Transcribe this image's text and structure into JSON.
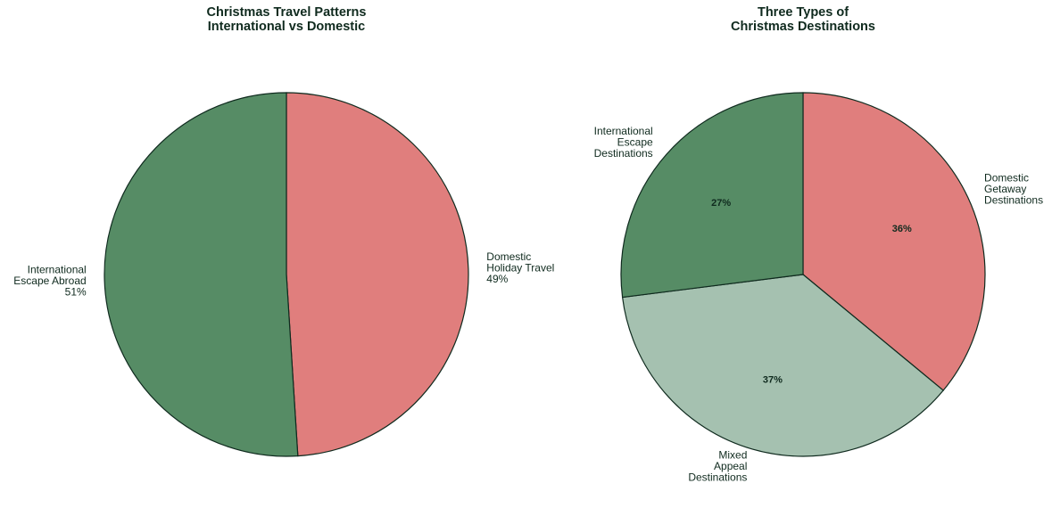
{
  "chart_data": [
    {
      "type": "pie",
      "title": [
        "Christmas Travel Patterns",
        "International vs Domestic"
      ],
      "start": "top",
      "direction": "clockwise",
      "labels_show_percent": "outside",
      "slices": [
        {
          "label": [
            "Domestic",
            "Holiday Travel"
          ],
          "value": 49,
          "pct_text": "49%",
          "color": "#e07e7d"
        },
        {
          "label": [
            "International",
            "Escape Abroad"
          ],
          "value": 51,
          "pct_text": "51%",
          "color": "#568c65"
        }
      ]
    },
    {
      "type": "pie",
      "title": [
        "Three Types of",
        "Christmas Destinations"
      ],
      "start": "top",
      "direction": "clockwise",
      "labels_show_percent": "inside",
      "slices": [
        {
          "label": [
            "Domestic",
            "Getaway",
            "Destinations"
          ],
          "value": 36,
          "pct_text": "36%",
          "color": "#e07e7d"
        },
        {
          "label": [
            "Mixed",
            "Appeal",
            "Destinations"
          ],
          "value": 37,
          "pct_text": "37%",
          "color": "#a5c1b0"
        },
        {
          "label": [
            "International",
            "Escape",
            "Destinations"
          ],
          "value": 27,
          "pct_text": "27%",
          "color": "#568c65"
        }
      ]
    }
  ],
  "edge_color": "#0f2a1e"
}
